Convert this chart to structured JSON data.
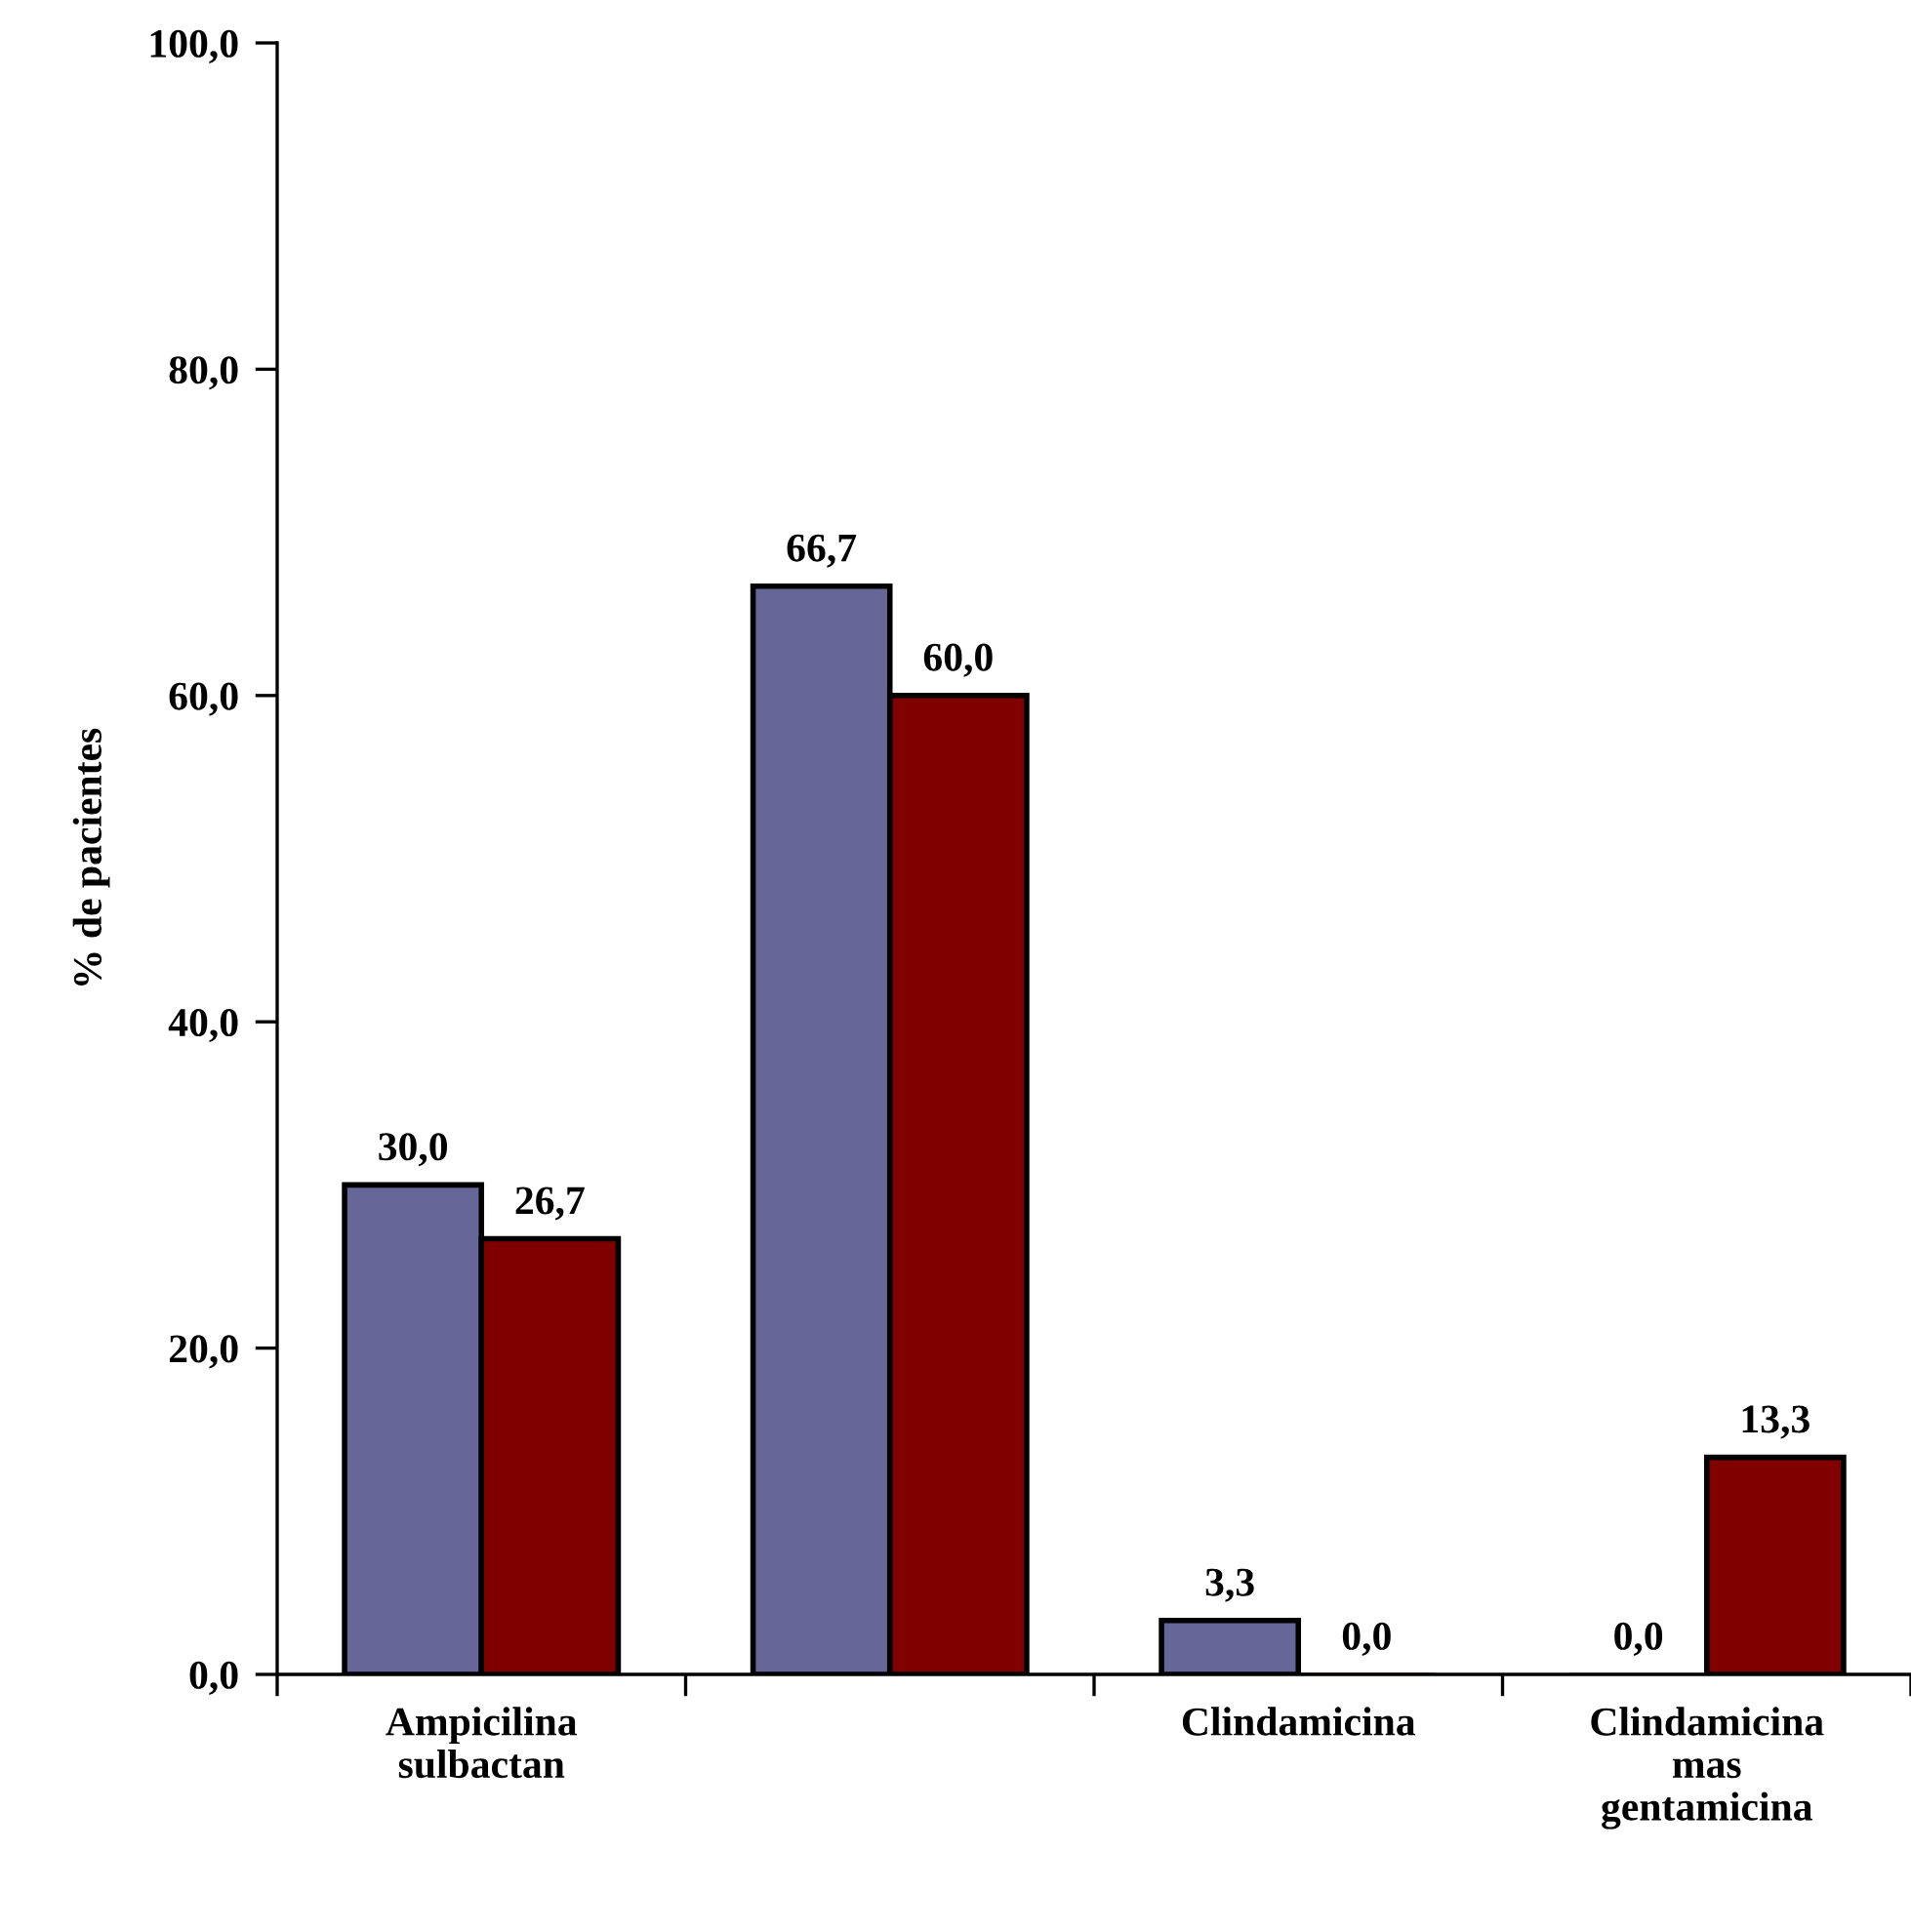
{
  "chart_data": {
    "type": "bar",
    "ylabel": "% de pacientes",
    "categories": [
      "Ampicilina\nsulbactan",
      null,
      "Clindamicina",
      "Clindamicina\nmas\ngentamicina"
    ],
    "series": [
      {
        "color": "#666699",
        "values": [
          30.0,
          66.7,
          3.3,
          0.0
        ],
        "value_labels": [
          "30,0",
          "66,7",
          "3,3",
          "0,0"
        ]
      },
      {
        "color": "#800000",
        "values": [
          26.7,
          60.0,
          0.0,
          13.3
        ],
        "value_labels": [
          "26,7",
          "60,0",
          "0,0",
          "13,3"
        ]
      }
    ],
    "ylim": [
      0,
      100
    ],
    "yticks": [
      {
        "value": 0,
        "label": "0,0"
      },
      {
        "value": 20,
        "label": "20,0"
      },
      {
        "value": 40,
        "label": "40,0"
      },
      {
        "value": 60,
        "label": "60,0"
      },
      {
        "value": 80,
        "label": "80,0"
      },
      {
        "value": 100,
        "label": "100,0"
      }
    ],
    "grid": false
  }
}
